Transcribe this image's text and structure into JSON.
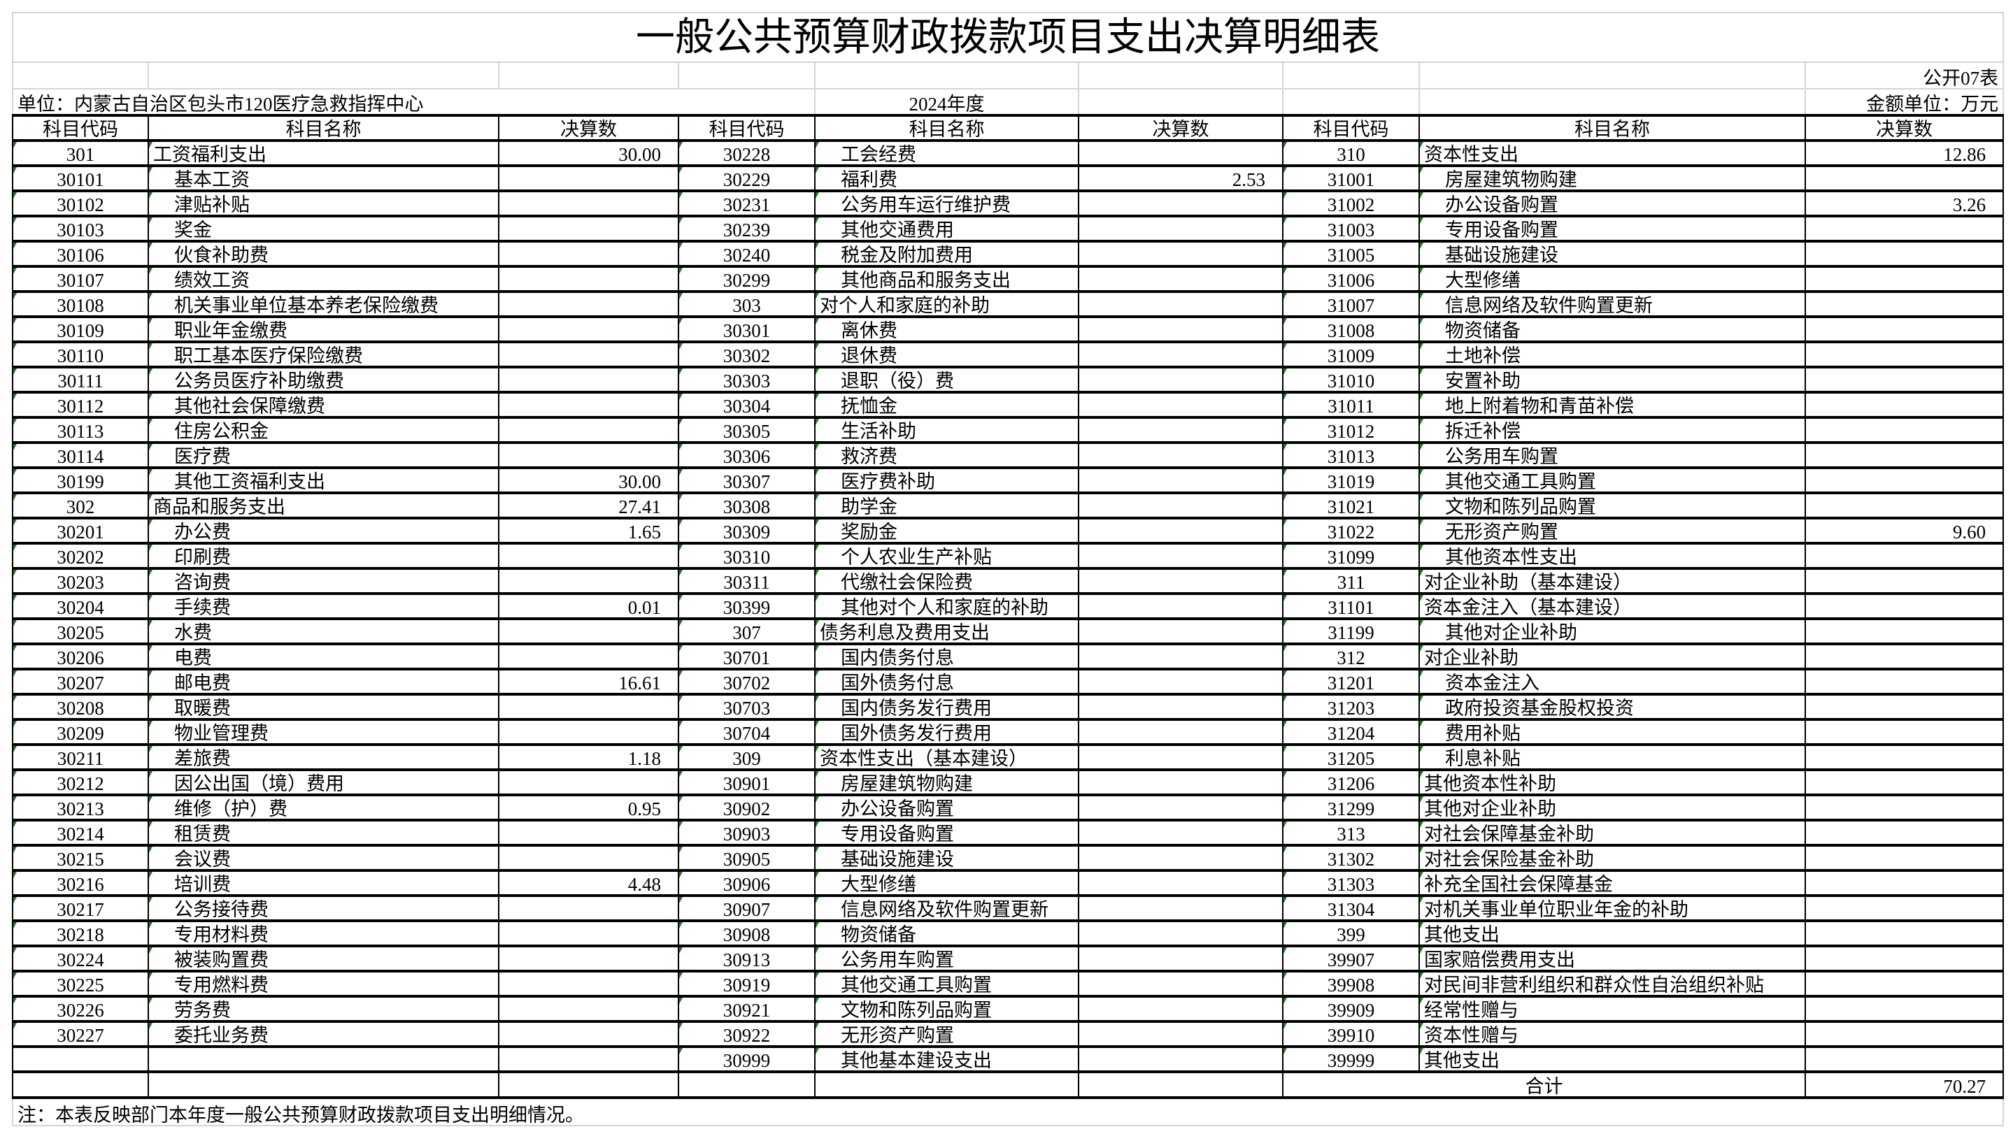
{
  "title": "一般公共预算财政拨款项目支出决算明细表",
  "form_no": "公开07表",
  "unit_label": "单位：内蒙古自治区包头市120医疗急救指挥中心",
  "year": "2024年度",
  "amount_unit": "金额单位：万元",
  "headers": [
    "科目代码",
    "科目名称",
    "决算数",
    "科目代码",
    "科目名称",
    "决算数",
    "科目代码",
    "科目名称",
    "决算数"
  ],
  "groups": [
    [
      [
        "301",
        "工资福利支出",
        "30.00",
        0
      ],
      [
        "30101",
        "基本工资",
        "",
        1
      ],
      [
        "30102",
        "津贴补贴",
        "",
        1
      ],
      [
        "30103",
        "奖金",
        "",
        1
      ],
      [
        "30106",
        "伙食补助费",
        "",
        1
      ],
      [
        "30107",
        "绩效工资",
        "",
        1
      ],
      [
        "30108",
        "机关事业单位基本养老保险缴费",
        "",
        1
      ],
      [
        "30109",
        "职业年金缴费",
        "",
        1
      ],
      [
        "30110",
        "职工基本医疗保险缴费",
        "",
        1
      ],
      [
        "30111",
        "公务员医疗补助缴费",
        "",
        1
      ],
      [
        "30112",
        "其他社会保障缴费",
        "",
        1
      ],
      [
        "30113",
        "住房公积金",
        "",
        1
      ],
      [
        "30114",
        "医疗费",
        "",
        1
      ],
      [
        "30199",
        "其他工资福利支出",
        "30.00",
        1
      ],
      [
        "302",
        "商品和服务支出",
        "27.41",
        0
      ],
      [
        "30201",
        "办公费",
        "1.65",
        1
      ],
      [
        "30202",
        "印刷费",
        "",
        1
      ],
      [
        "30203",
        "咨询费",
        "",
        1
      ],
      [
        "30204",
        "手续费",
        "0.01",
        1
      ],
      [
        "30205",
        "水费",
        "",
        1
      ],
      [
        "30206",
        "电费",
        "",
        1
      ],
      [
        "30207",
        "邮电费",
        "16.61",
        1
      ],
      [
        "30208",
        "取暖费",
        "",
        1
      ],
      [
        "30209",
        "物业管理费",
        "",
        1
      ],
      [
        "30211",
        "差旅费",
        "1.18",
        1
      ],
      [
        "30212",
        "因公出国（境）费用",
        "",
        1
      ],
      [
        "30213",
        "维修（护）费",
        "0.95",
        1
      ],
      [
        "30214",
        "租赁费",
        "",
        1
      ],
      [
        "30215",
        "会议费",
        "",
        1
      ],
      [
        "30216",
        "培训费",
        "4.48",
        1
      ],
      [
        "30217",
        "公务接待费",
        "",
        1
      ],
      [
        "30218",
        "专用材料费",
        "",
        1
      ],
      [
        "30224",
        "被装购置费",
        "",
        1
      ],
      [
        "30225",
        "专用燃料费",
        "",
        1
      ],
      [
        "30226",
        "劳务费",
        "",
        1
      ],
      [
        "30227",
        "委托业务费",
        "",
        1
      ],
      [
        "",
        "",
        "",
        0
      ]
    ],
    [
      [
        "30228",
        "工会经费",
        "",
        1
      ],
      [
        "30229",
        "福利费",
        "2.53",
        1
      ],
      [
        "30231",
        "公务用车运行维护费",
        "",
        1
      ],
      [
        "30239",
        "其他交通费用",
        "",
        1
      ],
      [
        "30240",
        "税金及附加费用",
        "",
        1
      ],
      [
        "30299",
        "其他商品和服务支出",
        "",
        1
      ],
      [
        "303",
        "对个人和家庭的补助",
        "",
        0
      ],
      [
        "30301",
        "离休费",
        "",
        1
      ],
      [
        "30302",
        "退休费",
        "",
        1
      ],
      [
        "30303",
        "退职（役）费",
        "",
        1
      ],
      [
        "30304",
        "抚恤金",
        "",
        1
      ],
      [
        "30305",
        "生活补助",
        "",
        1
      ],
      [
        "30306",
        "救济费",
        "",
        1
      ],
      [
        "30307",
        "医疗费补助",
        "",
        1
      ],
      [
        "30308",
        "助学金",
        "",
        1
      ],
      [
        "30309",
        "奖励金",
        "",
        1
      ],
      [
        "30310",
        "个人农业生产补贴",
        "",
        1
      ],
      [
        "30311",
        "代缴社会保险费",
        "",
        1
      ],
      [
        "30399",
        "其他对个人和家庭的补助",
        "",
        1
      ],
      [
        "307",
        "债务利息及费用支出",
        "",
        0
      ],
      [
        "30701",
        "国内债务付息",
        "",
        1
      ],
      [
        "30702",
        "国外债务付息",
        "",
        1
      ],
      [
        "30703",
        "国内债务发行费用",
        "",
        1
      ],
      [
        "30704",
        "国外债务发行费用",
        "",
        1
      ],
      [
        "309",
        "资本性支出（基本建设）",
        "",
        0
      ],
      [
        "30901",
        "房屋建筑物购建",
        "",
        1
      ],
      [
        "30902",
        "办公设备购置",
        "",
        1
      ],
      [
        "30903",
        "专用设备购置",
        "",
        1
      ],
      [
        "30905",
        "基础设施建设",
        "",
        1
      ],
      [
        "30906",
        "大型修缮",
        "",
        1
      ],
      [
        "30907",
        "信息网络及软件购置更新",
        "",
        1
      ],
      [
        "30908",
        "物资储备",
        "",
        1
      ],
      [
        "30913",
        "公务用车购置",
        "",
        1
      ],
      [
        "30919",
        "其他交通工具购置",
        "",
        1
      ],
      [
        "30921",
        "文物和陈列品购置",
        "",
        1
      ],
      [
        "30922",
        "无形资产购置",
        "",
        1
      ],
      [
        "30999",
        "其他基本建设支出",
        "",
        1
      ]
    ],
    [
      [
        "310",
        "资本性支出",
        "12.86",
        0
      ],
      [
        "31001",
        "房屋建筑物购建",
        "",
        1
      ],
      [
        "31002",
        "办公设备购置",
        "3.26",
        1
      ],
      [
        "31003",
        "专用设备购置",
        "",
        1
      ],
      [
        "31005",
        "基础设施建设",
        "",
        1
      ],
      [
        "31006",
        "大型修缮",
        "",
        1
      ],
      [
        "31007",
        "信息网络及软件购置更新",
        "",
        1
      ],
      [
        "31008",
        "物资储备",
        "",
        1
      ],
      [
        "31009",
        "土地补偿",
        "",
        1
      ],
      [
        "31010",
        "安置补助",
        "",
        1
      ],
      [
        "31011",
        "地上附着物和青苗补偿",
        "",
        1
      ],
      [
        "31012",
        "拆迁补偿",
        "",
        1
      ],
      [
        "31013",
        "公务用车购置",
        "",
        1
      ],
      [
        "31019",
        "其他交通工具购置",
        "",
        1
      ],
      [
        "31021",
        "文物和陈列品购置",
        "",
        1
      ],
      [
        "31022",
        "无形资产购置",
        "9.60",
        1
      ],
      [
        "31099",
        "其他资本性支出",
        "",
        1
      ],
      [
        "311",
        "对企业补助（基本建设）",
        "",
        0
      ],
      [
        "31101",
        "资本金注入（基本建设）",
        "",
        0
      ],
      [
        "31199",
        "其他对企业补助",
        "",
        1
      ],
      [
        "312",
        "对企业补助",
        "",
        0
      ],
      [
        "31201",
        "资本金注入",
        "",
        1
      ],
      [
        "31203",
        "政府投资基金股权投资",
        "",
        1
      ],
      [
        "31204",
        "费用补贴",
        "",
        1
      ],
      [
        "31205",
        "利息补贴",
        "",
        1
      ],
      [
        "31206",
        "其他资本性补助",
        "",
        0
      ],
      [
        "31299",
        "其他对企业补助",
        "",
        0
      ],
      [
        "313",
        "对社会保障基金补助",
        "",
        0
      ],
      [
        "31302",
        "对社会保险基金补助",
        "",
        0
      ],
      [
        "31303",
        "补充全国社会保障基金",
        "",
        0
      ],
      [
        "31304",
        "对机关事业单位职业年金的补助",
        "",
        0
      ],
      [
        "399",
        "其他支出",
        "",
        0
      ],
      [
        "39907",
        "国家赔偿费用支出",
        "",
        0
      ],
      [
        "39908",
        "对民间非营利组织和群众性自治组织补贴",
        "",
        0
      ],
      [
        "39909",
        "经常性赠与",
        "",
        0
      ],
      [
        "39910",
        "资本性赠与",
        "",
        0
      ],
      [
        "39999",
        "其他支出",
        "",
        0
      ]
    ]
  ],
  "total_label": "合计",
  "total_value": "70.27",
  "note": "注：本表反映部门本年度一般公共预算财政拨款项目支出明细情况。",
  "colors": {
    "border": "#000000",
    "grid": "#d4d4d4",
    "text_indicator": "#1a7f1a"
  }
}
